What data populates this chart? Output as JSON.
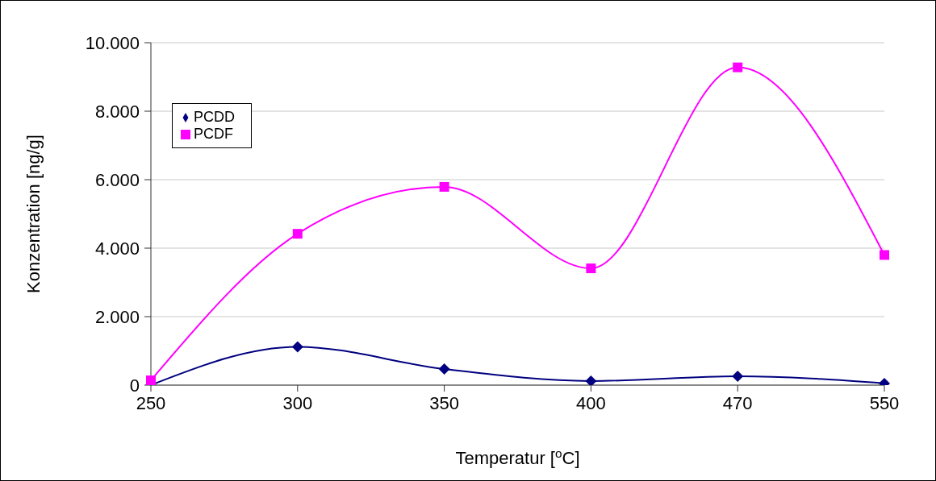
{
  "chart_data": {
    "type": "line",
    "xlabel": "Temperatur [$^{o}$C]",
    "ylabel": "Konzentration [ng/g]",
    "categories": [
      "250",
      "300",
      "350",
      "400",
      "470",
      "550"
    ],
    "series": [
      {
        "name": "PCDD",
        "color": "#000080",
        "marker": "diamond",
        "values": [
          0,
          1120,
          470,
          120,
          260,
          50
        ]
      },
      {
        "name": "PCDF",
        "color": "#ff00ff",
        "marker": "square",
        "values": [
          140,
          4420,
          5790,
          3410,
          9280,
          3800
        ]
      }
    ],
    "ylim": [
      0,
      10000
    ],
    "yticks": [
      0,
      {
        "value": 2000,
        "label": "2.000"
      },
      {
        "value": 4000,
        "label": "4.000"
      },
      {
        "value": 6000,
        "label": "6.000"
      },
      {
        "value": 8000,
        "label": "8.000"
      },
      {
        "value": 10000,
        "label": "10.000"
      }
    ],
    "grid": "y",
    "legend": "top left",
    "line_style": "solid"
  }
}
